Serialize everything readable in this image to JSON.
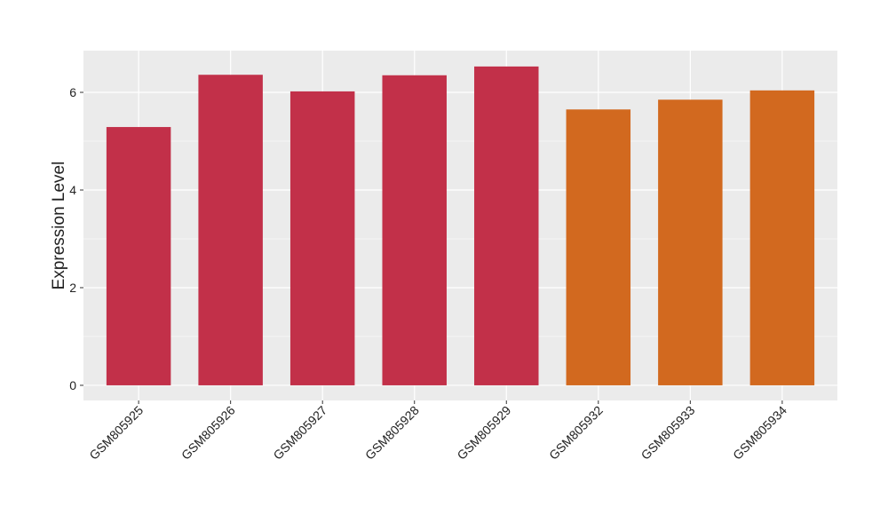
{
  "chart_data": {
    "type": "bar",
    "ylabel": "Expression Level",
    "categories": [
      "GSM805925",
      "GSM805926",
      "GSM805927",
      "GSM805928",
      "GSM805929",
      "GSM805932",
      "GSM805933",
      "GSM805934"
    ],
    "values": [
      5.29,
      6.36,
      6.02,
      6.35,
      6.53,
      5.65,
      5.85,
      6.04
    ],
    "colors": [
      "#c23049",
      "#c23049",
      "#c23049",
      "#c23049",
      "#c23049",
      "#d2691f",
      "#d2691f",
      "#d2691f"
    ],
    "ylim": [
      -0.31,
      6.855
    ],
    "yticks": [
      0,
      2,
      4,
      6
    ],
    "minor_yticks": [
      1,
      3,
      5
    ],
    "grid": true
  }
}
